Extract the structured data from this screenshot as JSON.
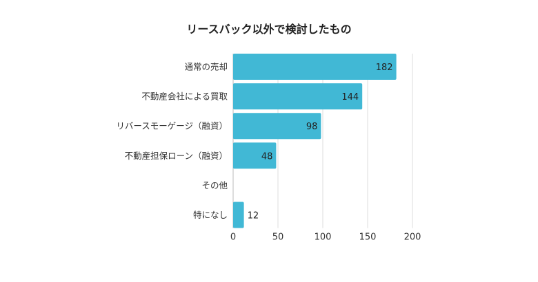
{
  "chart_data": {
    "type": "bar",
    "orientation": "horizontal",
    "title": "リースバック以外で検討したもの",
    "categories": [
      "通常の売却",
      "不動産会社による買取",
      "リバースモーゲージ（融資）",
      "不動産担保ローン（融資）",
      "その他",
      "特になし"
    ],
    "values": [
      182,
      144,
      98,
      48,
      0,
      12
    ],
    "xlim": [
      0,
      200
    ],
    "xticks": [
      0,
      50,
      100,
      150,
      200
    ],
    "grid": true,
    "bar_color": "#41b8d5",
    "xlabel": "",
    "ylabel": ""
  }
}
